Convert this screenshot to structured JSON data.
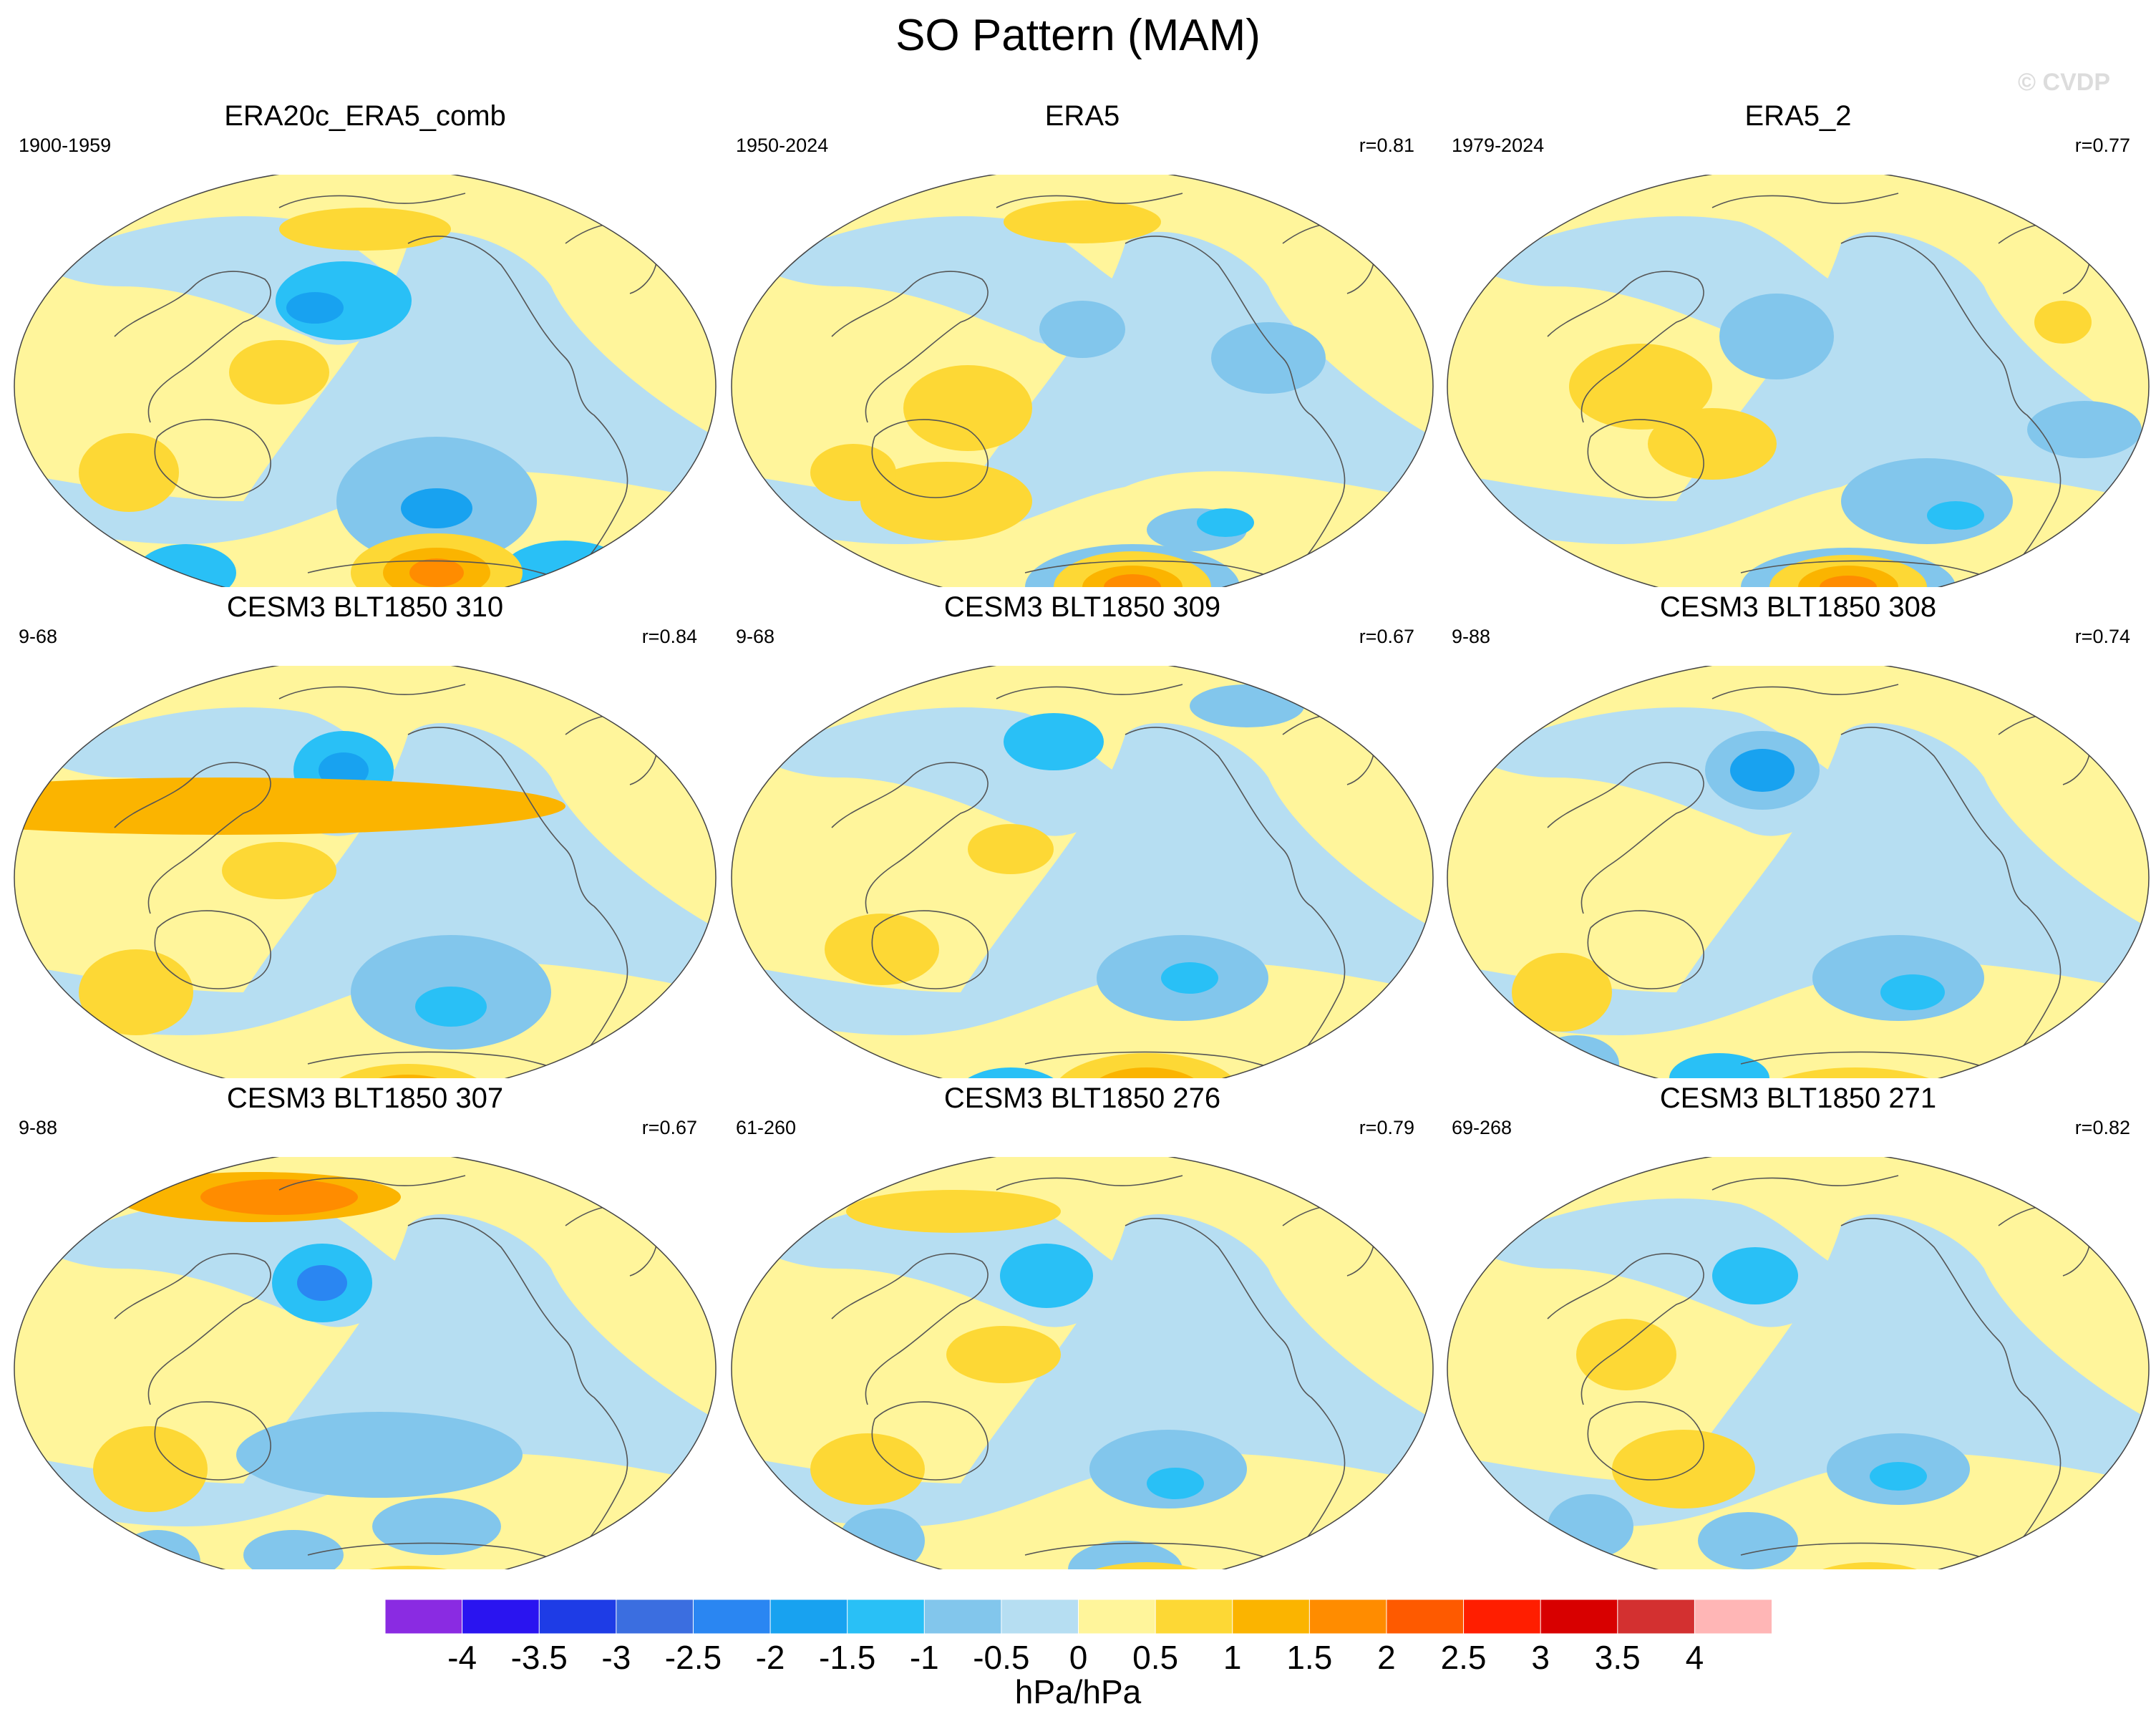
{
  "title": "SO Pattern (MAM)",
  "watermark": "© CVDP",
  "panels": [
    {
      "title": "ERA20c_ERA5_comb",
      "years": "1900-1959",
      "corr": ""
    },
    {
      "title": "ERA5",
      "years": "1950-2024",
      "corr": "r=0.81"
    },
    {
      "title": "ERA5_2",
      "years": "1979-2024",
      "corr": "r=0.77"
    },
    {
      "title": "CESM3 BLT1850 310",
      "years": "9-68",
      "corr": "r=0.84"
    },
    {
      "title": "CESM3 BLT1850 309",
      "years": "9-68",
      "corr": "r=0.67"
    },
    {
      "title": "CESM3 BLT1850 308",
      "years": "9-88",
      "corr": "r=0.74"
    },
    {
      "title": "CESM3 BLT1850 307",
      "years": "9-88",
      "corr": "r=0.67"
    },
    {
      "title": "CESM3 BLT1850 276",
      "years": "61-260",
      "corr": "r=0.79"
    },
    {
      "title": "CESM3 BLT1850 271",
      "years": "69-268",
      "corr": "r=0.82"
    }
  ],
  "colorbar": {
    "labels": [
      "-4",
      "-3.5",
      "-3",
      "-2.5",
      "-2",
      "-1.5",
      "-1",
      "-0.5",
      "0",
      "0.5",
      "1",
      "1.5",
      "2",
      "2.5",
      "3",
      "3.5",
      "4"
    ],
    "colors": [
      "#8a2be2",
      "#2a14f0",
      "#1e3ce6",
      "#3b6ee0",
      "#2a86f2",
      "#18a2f0",
      "#29c0f6",
      "#82c6ec",
      "#b6def2",
      "#fff59b",
      "#fdd835",
      "#fbb400",
      "#ff8c00",
      "#fe5a00",
      "#ff1e00",
      "#d80000",
      "#d33030",
      "#ffb6b6"
    ],
    "units": "hPa/hPa"
  }
}
